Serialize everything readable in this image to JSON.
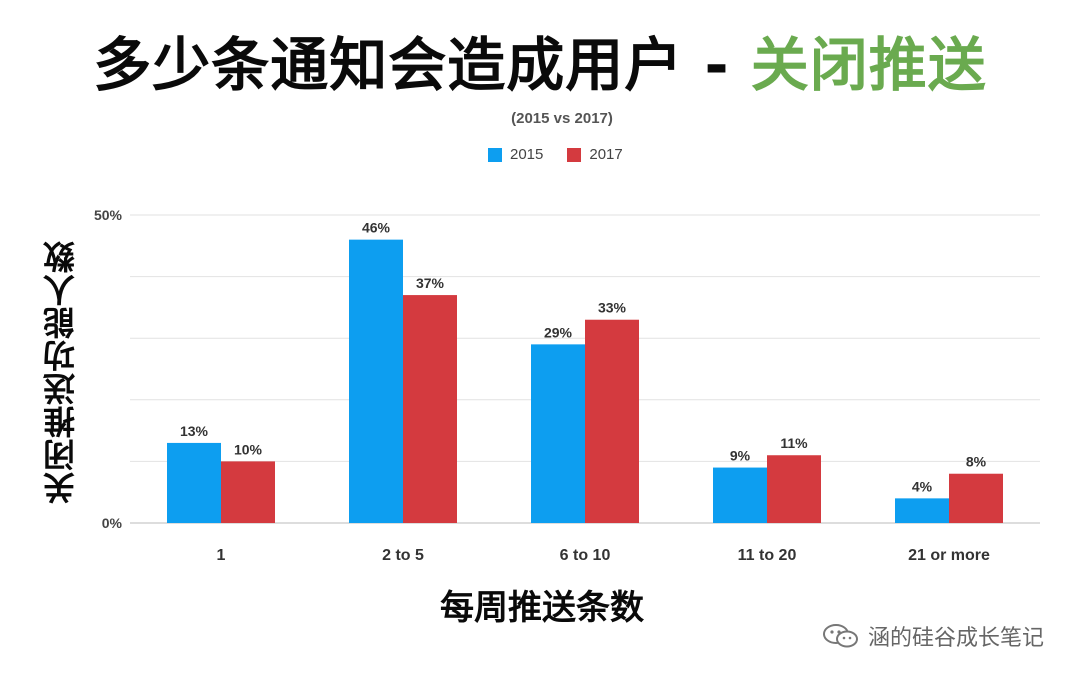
{
  "header": {
    "title_main": "多少条通知会造成用户 - ",
    "title_highlight": "关闭推送"
  },
  "chart_data": {
    "type": "bar",
    "subtitle": "(2015 vs 2017)",
    "categories": [
      "1",
      "2 to 5",
      "6 to 10",
      "11 to 20",
      "21 or more"
    ],
    "series": [
      {
        "name": "2015",
        "color": "#0d9ef0",
        "values": [
          13,
          46,
          29,
          9,
          4
        ],
        "labels": [
          "13%",
          "46%",
          "29%",
          "9%",
          "4%"
        ]
      },
      {
        "name": "2017",
        "color": "#d43a3f",
        "values": [
          10,
          37,
          33,
          11,
          8
        ],
        "labels": [
          "10%",
          "37%",
          "33%",
          "11%",
          "8%"
        ]
      }
    ],
    "ylim": [
      0,
      50
    ],
    "yticks": [
      0,
      10,
      20,
      30,
      40,
      50
    ],
    "ytick_labels": {
      "0": "0%",
      "50": "50%"
    },
    "xlabel": "每周推送条数",
    "ylabel": "关闭推送功能人数",
    "legend_position": "top-center",
    "grid": true
  },
  "watermark": {
    "text": "涵的硅谷成长笔记",
    "icon": "wechat-icon"
  }
}
